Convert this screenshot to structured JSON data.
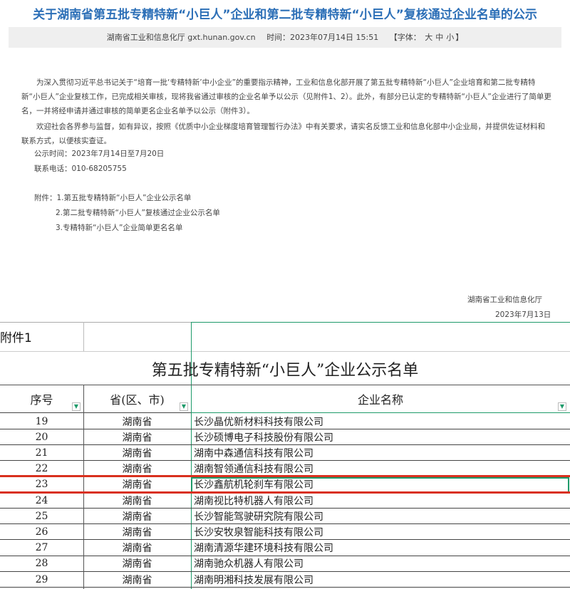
{
  "article": {
    "title": "关于湖南省第五批专精特新“小巨人”企业和第二批专精特新“小巨人”复核通过企业名单的公示",
    "source": "湖南省工业和信息化厅 gxt.hunan.gov.cn",
    "time": "时间：2023年07月14日 15:51",
    "font_label": "【字体：",
    "font_large": "大",
    "font_medium": "中",
    "font_small": "小",
    "font_close": "】",
    "para1": "为深入贯彻习近平总书记关于“培育一批‘专精特新’中小企业”的重要指示精神，工业和信息化部开展了第五批专精特新“小巨人”企业培育和第二批专精特新“小巨人”企业复核工作，已完成相关审核，现将我省通过审核的企业名单予以公示（见附件1、2）。此外，有部分已认定的专精特新“小巨人”企业进行了简单更名，一并将经申请并通过审核的简单更名企业名单予以公示（附件3）。",
    "para2": "欢迎社会各界参与监督，如有异议，按照《优质中小企业梯度培育管理暂行办法》中有关要求，请实名反馈工业和信息化部中小企业局，并提供佐证材料和联系方式，以便核实查证。",
    "period": "公示时间：2023年7月14日至7月20日",
    "phone": "联系电话：010-68205755",
    "attachments": [
      "附件：1.第五批专精特新“小巨人”企业公示名单",
      "2.第二批专精特新“小巨人”复核通过企业公示名单",
      "3.专精特新“小巨人”企业简单更名名单"
    ],
    "signature": "湖南省工业和信息化厅",
    "date": "2023年7月13日"
  },
  "sheet": {
    "label": "附件1",
    "title": "第五批专精特新“小巨人”企业公示名单",
    "headers": [
      "序号",
      "省(区、市)",
      "企业名称"
    ],
    "highlight_color": "#d9301e",
    "selection_color": "#1e9a6a",
    "rows": [
      {
        "no": "19",
        "prov": "湖南省",
        "name": "长沙晶优新材料科技有限公司"
      },
      {
        "no": "20",
        "prov": "湖南省",
        "name": "长沙硕博电子科技股份有限公司"
      },
      {
        "no": "21",
        "prov": "湖南省",
        "name": "湖南中森通信科技有限公司"
      },
      {
        "no": "22",
        "prov": "湖南省",
        "name": "湖南智领通信科技有限公司"
      },
      {
        "no": "23",
        "prov": "湖南省",
        "name": "长沙鑫航机轮刹车有限公司"
      },
      {
        "no": "24",
        "prov": "湖南省",
        "name": "湖南视比特机器人有限公司"
      },
      {
        "no": "25",
        "prov": "湖南省",
        "name": "长沙智能驾驶研究院有限公司"
      },
      {
        "no": "26",
        "prov": "湖南省",
        "name": "长沙安牧泉智能科技有限公司"
      },
      {
        "no": "27",
        "prov": "湖南省",
        "name": "湖南清源华建环境科技有限公司"
      },
      {
        "no": "28",
        "prov": "湖南省",
        "name": "湖南驰众机器人有限公司"
      },
      {
        "no": "29",
        "prov": "湖南省",
        "name": "湖南明湘科技发展有限公司"
      }
    ]
  }
}
